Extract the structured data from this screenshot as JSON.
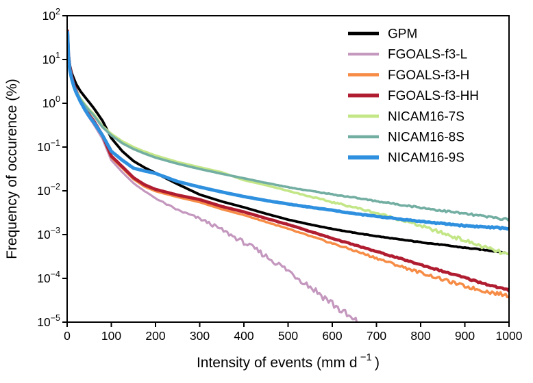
{
  "chart_data": {
    "type": "line",
    "title": "",
    "xlabel": {
      "prefix": "Intensity of events (mm d",
      "superscript": "−1",
      "suffix": ")"
    },
    "ylabel": "Frequency of occurence (%)",
    "xlim": [
      0,
      1000
    ],
    "ylim": [
      1e-05,
      100
    ],
    "y_scale": "log",
    "grid": false,
    "frame": "box",
    "axis_color": "#000000",
    "x_ticks": [
      0,
      100,
      200,
      300,
      400,
      500,
      600,
      700,
      800,
      900,
      1000
    ],
    "y_tick_exponents": [
      2,
      1,
      0,
      -1,
      -2,
      -3,
      -4,
      -5
    ],
    "legend_position": "upper right",
    "series": [
      {
        "name": "GPM",
        "color": "#000000",
        "line_width": 3.8,
        "noise": 0.01,
        "noise_start": 400,
        "x": [
          1,
          3,
          6,
          10,
          15,
          20,
          30,
          40,
          50,
          60,
          80,
          100,
          125,
          150,
          175,
          200,
          250,
          300,
          350,
          400,
          450,
          500,
          550,
          600,
          650,
          700,
          750,
          800,
          850,
          900,
          950,
          990
        ],
        "y": [
          35,
          14,
          7.5,
          5.0,
          3.7,
          2.8,
          1.9,
          1.4,
          1.05,
          0.78,
          0.4,
          0.16,
          0.08,
          0.048,
          0.034,
          0.0255,
          0.0142,
          0.0082,
          0.0057,
          0.0042,
          0.003,
          0.0022,
          0.0017,
          0.00135,
          0.0011,
          0.00092,
          0.00078,
          0.00067,
          0.00058,
          0.0005,
          0.00044,
          0.00039
        ]
      },
      {
        "name": "FGOALS-f3-L",
        "color": "#C497BE",
        "line_width": 3.2,
        "noise": 0.11,
        "noise_start": 150,
        "x": [
          1,
          3,
          6,
          10,
          15,
          20,
          30,
          40,
          50,
          60,
          80,
          100,
          125,
          150,
          175,
          200,
          225,
          250,
          275,
          300,
          325,
          350,
          375,
          400,
          425,
          450,
          475,
          500,
          525,
          550,
          575,
          600,
          625,
          650,
          656
        ],
        "y": [
          43,
          12,
          6.0,
          3.8,
          2.5,
          1.8,
          1.05,
          0.68,
          0.47,
          0.33,
          0.155,
          0.05,
          0.0265,
          0.015,
          0.0098,
          0.0068,
          0.0049,
          0.00365,
          0.0029,
          0.0023,
          0.00175,
          0.00128,
          0.00092,
          0.00066,
          0.00047,
          0.00032,
          0.00022,
          0.00015,
          0.0001,
          6.5e-05,
          4.2e-05,
          2.7e-05,
          1.65e-05,
          1.05e-05,
          1e-05
        ]
      },
      {
        "name": "FGOALS-f3-H",
        "color": "#F68C46",
        "line_width": 3.5,
        "noise": 0.045,
        "noise_start": 350,
        "x": [
          1,
          3,
          6,
          10,
          15,
          20,
          30,
          40,
          50,
          60,
          80,
          100,
          125,
          150,
          175,
          200,
          250,
          300,
          350,
          400,
          450,
          500,
          550,
          600,
          650,
          700,
          750,
          800,
          850,
          900,
          950,
          1000
        ],
        "y": [
          45,
          13,
          6.5,
          4.0,
          2.6,
          1.9,
          1.15,
          0.75,
          0.52,
          0.38,
          0.175,
          0.058,
          0.033,
          0.0185,
          0.0125,
          0.0098,
          0.0072,
          0.0055,
          0.0038,
          0.0028,
          0.00195,
          0.00135,
          0.00092,
          0.00063,
          0.00043,
          0.00029,
          0.000195,
          0.000135,
          9.4e-05,
          6.6e-05,
          5e-05,
          4e-05
        ]
      },
      {
        "name": "FGOALS-f3-HH",
        "color": "#B01C30",
        "line_width": 4.6,
        "noise": 0.02,
        "noise_start": 350,
        "x": [
          1,
          3,
          6,
          10,
          15,
          20,
          30,
          40,
          50,
          60,
          80,
          100,
          125,
          150,
          175,
          200,
          250,
          300,
          350,
          400,
          450,
          500,
          550,
          600,
          650,
          700,
          750,
          800,
          850,
          900,
          950,
          1000
        ],
        "y": [
          45,
          13.5,
          6.8,
          4.2,
          2.7,
          2.0,
          1.2,
          0.78,
          0.54,
          0.4,
          0.185,
          0.062,
          0.0355,
          0.02,
          0.0138,
          0.0108,
          0.008,
          0.0063,
          0.0044,
          0.0033,
          0.00235,
          0.0017,
          0.00118,
          0.00082,
          0.00058,
          0.00041,
          0.00029,
          0.000205,
          0.000145,
          0.000103,
          7.3e-05,
          5.3e-05
        ]
      },
      {
        "name": "NICAM16-7S",
        "color": "#C3E687",
        "line_width": 3.6,
        "noise": 0.05,
        "noise_start": 420,
        "x": [
          1,
          3,
          6,
          10,
          15,
          20,
          30,
          40,
          50,
          60,
          80,
          100,
          125,
          150,
          175,
          200,
          250,
          300,
          350,
          400,
          450,
          500,
          550,
          600,
          650,
          700,
          750,
          800,
          850,
          900,
          950,
          1000
        ],
        "y": [
          38,
          11,
          5.5,
          3.6,
          2.5,
          1.95,
          1.3,
          0.95,
          0.72,
          0.57,
          0.3,
          0.2,
          0.135,
          0.1,
          0.079,
          0.064,
          0.0455,
          0.0345,
          0.0265,
          0.0175,
          0.0135,
          0.01,
          0.0074,
          0.0055,
          0.0042,
          0.0031,
          0.00225,
          0.00158,
          0.00108,
          0.00073,
          0.00049,
          0.00034
        ]
      },
      {
        "name": "NICAM16-8S",
        "color": "#73AEA2",
        "line_width": 3.6,
        "noise": 0.03,
        "noise_start": 400,
        "x": [
          1,
          3,
          6,
          10,
          15,
          20,
          30,
          40,
          50,
          60,
          80,
          100,
          125,
          150,
          175,
          200,
          250,
          300,
          350,
          400,
          450,
          500,
          550,
          600,
          650,
          700,
          750,
          800,
          850,
          900,
          950,
          1000
        ],
        "y": [
          38,
          10.5,
          5.2,
          3.4,
          2.4,
          1.85,
          1.22,
          0.9,
          0.68,
          0.53,
          0.285,
          0.185,
          0.122,
          0.09,
          0.071,
          0.0575,
          0.0415,
          0.0315,
          0.0245,
          0.0193,
          0.0152,
          0.0121,
          0.01,
          0.0083,
          0.007,
          0.0058,
          0.0049,
          0.00415,
          0.0035,
          0.003,
          0.00255,
          0.0022
        ]
      },
      {
        "name": "NICAM16-9S",
        "color": "#2E90DF",
        "line_width": 5.0,
        "noise": 0.018,
        "noise_start": 400,
        "x": [
          1,
          3,
          6,
          10,
          15,
          20,
          30,
          40,
          50,
          60,
          80,
          100,
          125,
          150,
          175,
          200,
          250,
          300,
          350,
          400,
          450,
          500,
          550,
          600,
          650,
          700,
          750,
          800,
          850,
          900,
          950,
          1000
        ],
        "y": [
          42,
          12,
          5.8,
          3.7,
          2.45,
          1.8,
          1.1,
          0.72,
          0.5,
          0.37,
          0.185,
          0.08,
          0.05,
          0.033,
          0.0285,
          0.025,
          0.0163,
          0.0122,
          0.0094,
          0.0074,
          0.006,
          0.005,
          0.0042,
          0.0036,
          0.003,
          0.00262,
          0.00228,
          0.002,
          0.00178,
          0.0016,
          0.00148,
          0.00138
        ]
      }
    ]
  }
}
